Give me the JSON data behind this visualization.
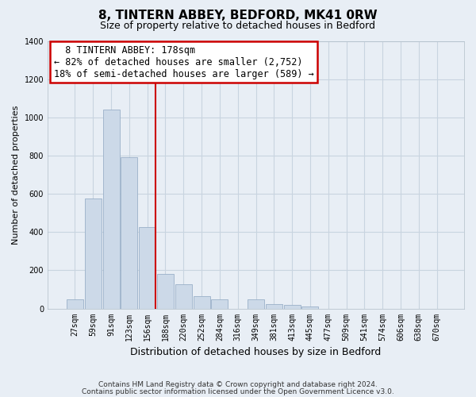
{
  "title": "8, TINTERN ABBEY, BEDFORD, MK41 0RW",
  "subtitle": "Size of property relative to detached houses in Bedford",
  "xlabel": "Distribution of detached houses by size in Bedford",
  "ylabel": "Number of detached properties",
  "bar_color": "#ccd9e8",
  "bar_edge_color": "#9ab0c8",
  "categories": [
    "27sqm",
    "59sqm",
    "91sqm",
    "123sqm",
    "156sqm",
    "188sqm",
    "220sqm",
    "252sqm",
    "284sqm",
    "316sqm",
    "349sqm",
    "381sqm",
    "413sqm",
    "445sqm",
    "477sqm",
    "509sqm",
    "541sqm",
    "574sqm",
    "606sqm",
    "638sqm",
    "670sqm"
  ],
  "values": [
    47,
    575,
    1040,
    790,
    425,
    182,
    128,
    65,
    47,
    0,
    47,
    25,
    18,
    10,
    0,
    0,
    0,
    0,
    0,
    0,
    0
  ],
  "ylim": [
    0,
    1400
  ],
  "yticks": [
    0,
    200,
    400,
    600,
    800,
    1000,
    1200,
    1400
  ],
  "vline_color": "#cc0000",
  "annotation_title": "8 TINTERN ABBEY: 178sqm",
  "annotation_line1": "← 82% of detached houses are smaller (2,752)",
  "annotation_line2": "18% of semi-detached houses are larger (589) →",
  "annotation_box_color": "#ffffff",
  "annotation_box_edge": "#cc0000",
  "footer1": "Contains HM Land Registry data © Crown copyright and database right 2024.",
  "footer2": "Contains public sector information licensed under the Open Government Licence v3.0.",
  "bg_color": "#e8eef5",
  "plot_bg_color": "#e8eef5",
  "grid_color": "#c8d4e0",
  "vline_x_index": 4
}
